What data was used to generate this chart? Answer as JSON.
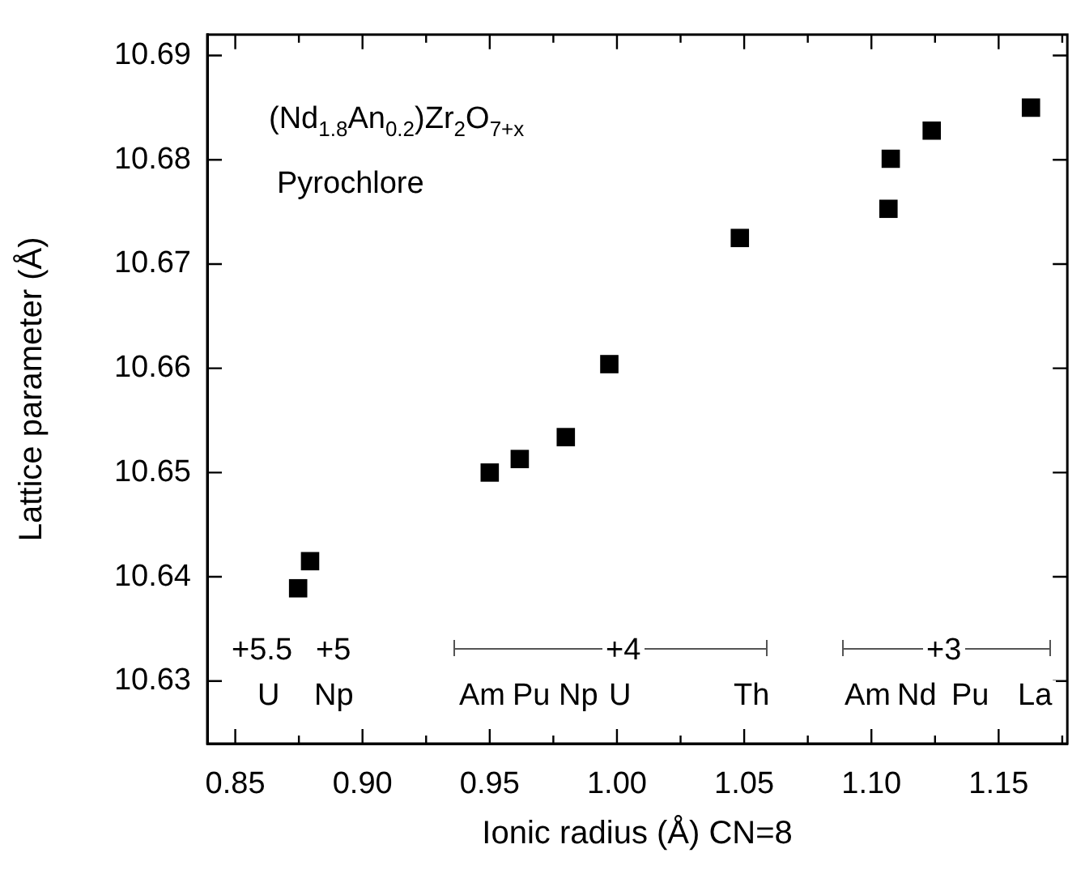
{
  "chart_data": {
    "type": "scatter",
    "xlabel": "Ionic radius (Å) CN=8",
    "ylabel": "Lattice parameter (Å)",
    "series": [
      {
        "color": "#000000",
        "x": [
          0.8747,
          0.8794,
          0.95,
          0.9618,
          0.9799,
          0.997,
          1.0483,
          1.1067,
          1.1076,
          1.1237,
          1.1627
        ],
        "values": [
          10.6389,
          10.6415,
          10.65,
          10.6513,
          10.6534,
          10.6604,
          10.6725,
          10.6753,
          10.6801,
          10.6828,
          10.685
        ]
      }
    ],
    "marker": "square",
    "legend": false,
    "grid": false,
    "xlim": [
      0.839,
      1.177
    ],
    "xticks": [
      0.85,
      {
        "value": 0.875,
        "label": null
      },
      {
        "value": 0.9,
        "label": "0.90"
      },
      {
        "value": 0.925,
        "label": null
      },
      0.95,
      {
        "value": 0.975,
        "label": null
      },
      {
        "value": 1.0,
        "label": "1.00"
      },
      {
        "value": 1.025,
        "label": null
      },
      1.05,
      {
        "value": 1.075,
        "label": null
      },
      {
        "value": 1.1,
        "label": "1.10"
      },
      {
        "value": 1.125,
        "label": null
      },
      1.15,
      {
        "value": 1.175,
        "label": null
      }
    ],
    "ylim": [
      10.624,
      10.692
    ],
    "yticks": [
      10.63,
      10.64,
      10.65,
      10.66,
      10.67,
      10.68,
      10.69
    ],
    "annotations": [
      "(Nd$_{1.8}$An$_{0.2}$)Zr$_{2}$O$_{7+x}$",
      "Pyrochlore",
      "+5.5",
      "U",
      "+5",
      "Np",
      "Am",
      "Pu",
      "Np",
      "U",
      "Th",
      "+4",
      "+3",
      "Am",
      "Nd",
      "Pu",
      "La"
    ]
  }
}
